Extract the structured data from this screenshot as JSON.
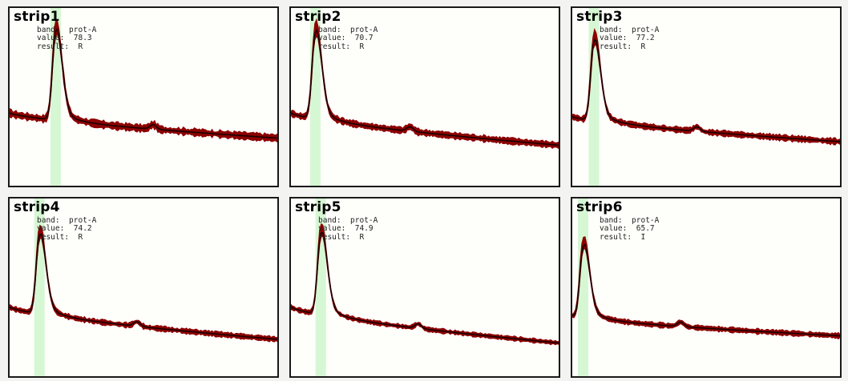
{
  "chart_data": [
    {
      "type": "line",
      "title": "strip1",
      "annotations": {
        "band": "prot-A",
        "value": "78.3",
        "result": "R"
      },
      "peak_x": 0.17,
      "peak_y": 0.87,
      "baseline_start": 0.42,
      "baseline_end": 0.28,
      "bump_x": 0.53,
      "noise": 0.05
    },
    {
      "type": "line",
      "title": "strip2",
      "annotations": {
        "band": "prot-A",
        "value": "70.7",
        "result": "R"
      },
      "peak_x": 0.09,
      "peak_y": 0.86,
      "baseline_start": 0.42,
      "baseline_end": 0.24,
      "bump_x": 0.44,
      "noise": 0.045
    },
    {
      "type": "line",
      "title": "strip3",
      "annotations": {
        "band": "prot-A",
        "value": "77.2",
        "result": "R"
      },
      "peak_x": 0.08,
      "peak_y": 0.81,
      "baseline_start": 0.4,
      "baseline_end": 0.26,
      "bump_x": 0.46,
      "noise": 0.04
    },
    {
      "type": "line",
      "title": "strip4",
      "annotations": {
        "band": "prot-A",
        "value": "74.2",
        "result": "R"
      },
      "peak_x": 0.11,
      "peak_y": 0.79,
      "baseline_start": 0.4,
      "baseline_end": 0.22,
      "bump_x": 0.47,
      "noise": 0.035
    },
    {
      "type": "line",
      "title": "strip5",
      "annotations": {
        "band": "prot-A",
        "value": "74.9",
        "result": "R"
      },
      "peak_x": 0.11,
      "peak_y": 0.8,
      "baseline_start": 0.4,
      "baseline_end": 0.2,
      "bump_x": 0.47,
      "noise": 0.03
    },
    {
      "type": "line",
      "title": "strip6",
      "annotations": {
        "band": "prot-A",
        "value": "65.7",
        "result": "I"
      },
      "peak_x": 0.04,
      "peak_y": 0.73,
      "baseline_start": 0.35,
      "baseline_end": 0.24,
      "bump_x": 0.4,
      "noise": 0.035
    }
  ],
  "labels": {
    "band": "band:",
    "value": "value:",
    "result": "result:"
  },
  "colors": {
    "trace": "#1a0000",
    "envelope": "#8c0000",
    "band_highlight": "#d6f7d3",
    "frame": "#1a1a1a"
  }
}
